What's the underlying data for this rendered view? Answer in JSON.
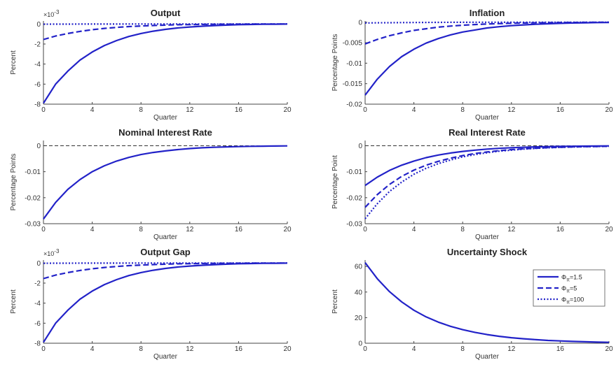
{
  "colors": {
    "series": "#2222c8",
    "zero_line": "#333333",
    "axes": "#444444"
  },
  "legend": {
    "position": "inside-right",
    "entries": [
      {
        "base": "Φ",
        "sub": "π",
        "suffix": "=1.5",
        "style": "solid"
      },
      {
        "base": "Φ",
        "sub": "π",
        "suffix": "=5",
        "style": "dashed"
      },
      {
        "base": "Φ",
        "sub": "π",
        "suffix": "=100",
        "style": "dotted"
      }
    ]
  },
  "chart_data": [
    {
      "type": "line",
      "title": "Output",
      "xlabel": "Quarter",
      "ylabel": "Percent",
      "multiplier": "×10",
      "multiplier_exp": "-3",
      "xlim": [
        0,
        20
      ],
      "ylim": [
        -8,
        0.3
      ],
      "xticks": [
        0,
        4,
        8,
        12,
        16,
        20
      ],
      "yticks": [
        -8,
        -6,
        -4,
        -2,
        0
      ],
      "zero_line": false,
      "series": [
        {
          "style": "solid",
          "values": [
            -7.9,
            -6.0,
            -4.7,
            -3.6,
            -2.8,
            -2.15,
            -1.65,
            -1.25,
            -0.95,
            -0.72,
            -0.54,
            -0.4,
            -0.3,
            -0.22,
            -0.16,
            -0.11,
            -0.07,
            -0.05,
            -0.03,
            -0.02,
            -0.01
          ]
        },
        {
          "style": "dashed",
          "values": [
            -1.55,
            -1.2,
            -0.95,
            -0.74,
            -0.57,
            -0.44,
            -0.34,
            -0.26,
            -0.2,
            -0.15,
            -0.11,
            -0.08,
            -0.06,
            -0.04,
            -0.03,
            -0.02,
            -0.015,
            -0.01,
            -0.007,
            -0.005,
            -0.003
          ]
        },
        {
          "style": "dotted",
          "values": [
            -0.02,
            -0.016,
            -0.012,
            -0.009,
            -0.007,
            -0.005,
            -0.004,
            -0.003,
            -0.002,
            -0.0015,
            -0.001,
            -0.0008,
            -0.0006,
            -0.0004,
            -0.0003,
            -0.0002,
            -0.0002,
            -0.0001,
            -0.0001,
            -0.0001,
            0
          ]
        }
      ]
    },
    {
      "type": "line",
      "title": "Inflation",
      "xlabel": "Quarter",
      "ylabel": "Percentage Points",
      "xlim": [
        0,
        20
      ],
      "ylim": [
        -0.02,
        0.0003
      ],
      "xticks": [
        0,
        4,
        8,
        12,
        16,
        20
      ],
      "yticks": [
        -0.02,
        -0.015,
        -0.01,
        -0.005,
        0
      ],
      "zero_line": false,
      "series": [
        {
          "style": "solid",
          "values": [
            -0.0178,
            -0.0139,
            -0.0108,
            -0.0084,
            -0.0066,
            -0.0051,
            -0.004,
            -0.0031,
            -0.0024,
            -0.0019,
            -0.0014,
            -0.0011,
            -0.00085,
            -0.00065,
            -0.0005,
            -0.00038,
            -0.00028,
            -0.0002,
            -0.00014,
            -0.0001,
            -7e-05
          ]
        },
        {
          "style": "dashed",
          "values": [
            -0.0053,
            -0.0042,
            -0.0033,
            -0.0026,
            -0.002,
            -0.0016,
            -0.0012,
            -0.00095,
            -0.00074,
            -0.00057,
            -0.00044,
            -0.00034,
            -0.00026,
            -0.0002,
            -0.00015,
            -0.00011,
            -8e-05,
            -6e-05,
            -4e-05,
            -3e-05,
            -2e-05
          ]
        },
        {
          "style": "dotted",
          "values": [
            -0.0002,
            -0.00015,
            -0.00012,
            -9e-05,
            -7e-05,
            -5e-05,
            -4e-05,
            -3e-05,
            -2e-05,
            -1.5e-05,
            -1e-05,
            0,
            0,
            0,
            0,
            0,
            0,
            0,
            0,
            0,
            0
          ]
        }
      ]
    },
    {
      "type": "line",
      "title": "Nominal Interest Rate",
      "xlabel": "Quarter",
      "ylabel": "Percentage Points",
      "xlim": [
        0,
        20
      ],
      "ylim": [
        -0.03,
        0.002
      ],
      "xticks": [
        0,
        4,
        8,
        12,
        16,
        20
      ],
      "yticks": [
        -0.03,
        -0.02,
        -0.01,
        0
      ],
      "zero_line": true,
      "series": [
        {
          "style": "solid",
          "values": [
            -0.0282,
            -0.0218,
            -0.0168,
            -0.013,
            -0.01,
            -0.0077,
            -0.0059,
            -0.0045,
            -0.0034,
            -0.0026,
            -0.002,
            -0.0015,
            -0.0011,
            -0.0008,
            -0.0006,
            -0.00045,
            -0.00033,
            -0.00024,
            -0.00017,
            -0.00012,
            -8e-05
          ]
        }
      ]
    },
    {
      "type": "line",
      "title": "Real Interest Rate",
      "xlabel": "Quarter",
      "ylabel": "Percentage Point",
      "xlim": [
        0,
        20
      ],
      "ylim": [
        -0.03,
        0.002
      ],
      "xticks": [
        0,
        4,
        8,
        12,
        16,
        20
      ],
      "yticks": [
        -0.03,
        -0.02,
        -0.01,
        0
      ],
      "zero_line": true,
      "series": [
        {
          "style": "solid",
          "values": [
            -0.0153,
            -0.0121,
            -0.0095,
            -0.0075,
            -0.0059,
            -0.0046,
            -0.0036,
            -0.0028,
            -0.0022,
            -0.0017,
            -0.0013,
            -0.001,
            -0.00078,
            -0.0006,
            -0.00046,
            -0.00035,
            -0.00027,
            -0.0002,
            -0.00015,
            -0.00011,
            -8e-05
          ]
        },
        {
          "style": "dashed",
          "values": [
            -0.0237,
            -0.0188,
            -0.0149,
            -0.0118,
            -0.0094,
            -0.0075,
            -0.006,
            -0.0048,
            -0.0038,
            -0.003,
            -0.0024,
            -0.0019,
            -0.0015,
            -0.0012,
            -0.00095,
            -0.00075,
            -0.0006,
            -0.00047,
            -0.00037,
            -0.00029,
            -0.00023
          ]
        },
        {
          "style": "dotted",
          "values": [
            -0.0281,
            -0.0223,
            -0.0176,
            -0.014,
            -0.011,
            -0.0087,
            -0.0069,
            -0.0055,
            -0.0043,
            -0.0034,
            -0.0027,
            -0.0021,
            -0.0017,
            -0.0013,
            -0.001,
            -0.0008,
            -0.00063,
            -0.0005,
            -0.0004,
            -0.0003,
            -0.00024
          ]
        }
      ]
    },
    {
      "type": "line",
      "title": "Output Gap",
      "xlabel": "Quarter",
      "ylabel": "Percent",
      "multiplier": "×10",
      "multiplier_exp": "-3",
      "xlim": [
        0,
        20
      ],
      "ylim": [
        -8,
        0.3
      ],
      "xticks": [
        0,
        4,
        8,
        12,
        16,
        20
      ],
      "yticks": [
        -8,
        -6,
        -4,
        -2,
        0
      ],
      "zero_line": false,
      "series": [
        {
          "style": "solid",
          "values": [
            -7.9,
            -6.0,
            -4.7,
            -3.6,
            -2.8,
            -2.15,
            -1.65,
            -1.25,
            -0.95,
            -0.72,
            -0.54,
            -0.4,
            -0.3,
            -0.22,
            -0.16,
            -0.11,
            -0.07,
            -0.05,
            -0.03,
            -0.02,
            -0.01
          ]
        },
        {
          "style": "dashed",
          "values": [
            -1.55,
            -1.2,
            -0.95,
            -0.74,
            -0.57,
            -0.44,
            -0.34,
            -0.26,
            -0.2,
            -0.15,
            -0.11,
            -0.08,
            -0.06,
            -0.04,
            -0.03,
            -0.02,
            -0.015,
            -0.01,
            -0.007,
            -0.005,
            -0.003
          ]
        },
        {
          "style": "dotted",
          "values": [
            -0.02,
            -0.016,
            -0.012,
            -0.009,
            -0.007,
            -0.005,
            -0.004,
            -0.003,
            -0.002,
            -0.0015,
            -0.001,
            -0.0008,
            -0.0006,
            -0.0004,
            -0.0003,
            -0.0002,
            -0.0002,
            -0.0001,
            -0.0001,
            -0.0001,
            0
          ]
        }
      ]
    },
    {
      "type": "line",
      "title": "Uncertainty Shock",
      "xlabel": "Quarter",
      "ylabel": "Percent",
      "xlim": [
        0,
        20
      ],
      "ylim": [
        0,
        65
      ],
      "xticks": [
        0,
        4,
        8,
        12,
        16,
        20
      ],
      "yticks": [
        0,
        20,
        40,
        60
      ],
      "zero_line": false,
      "show_legend": true,
      "series": [
        {
          "style": "solid",
          "values": [
            63,
            50.4,
            40.3,
            32.3,
            25.8,
            20.6,
            16.5,
            13.2,
            10.6,
            8.5,
            6.8,
            5.4,
            4.3,
            3.5,
            2.8,
            2.2,
            1.8,
            1.4,
            1.15,
            0.9,
            0.7
          ]
        }
      ]
    }
  ]
}
